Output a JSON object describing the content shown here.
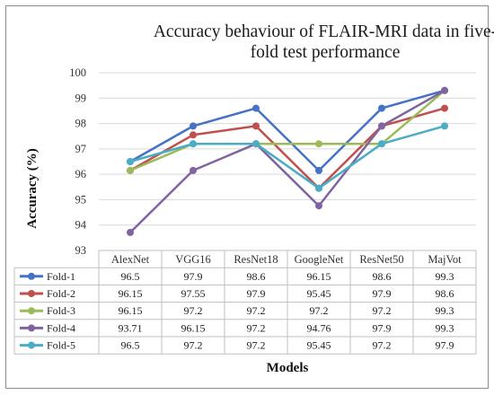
{
  "chart_data": {
    "type": "line",
    "title": "Accuracy behaviour of FLAIR-MRI data in five-fold test performance",
    "title_lines": [
      "Accuracy  behaviour  of  FLAIR-MRI  data  in  five-",
      "fold test performance"
    ],
    "xlabel": "Models",
    "ylabel": "Accuracy (%)",
    "ylim": [
      93,
      100
    ],
    "yticks": [
      "93",
      "94",
      "95",
      "96",
      "97",
      "98",
      "99",
      "100"
    ],
    "grid": true,
    "legend": "data-table",
    "categories": [
      "AlexNet",
      "VGG16",
      "ResNet18",
      "GoogleNet",
      "ResNet50",
      "MajVot"
    ],
    "series": [
      {
        "name": "Fold-1",
        "color": "#4472C4",
        "values": [
          96.5,
          97.9,
          98.6,
          96.15,
          98.6,
          99.3
        ],
        "labels": [
          "96.5",
          "97.9",
          "98.6",
          "96.15",
          "98.6",
          "99.3"
        ]
      },
      {
        "name": "Fold-2",
        "color": "#C0504D",
        "values": [
          96.15,
          97.55,
          97.9,
          95.45,
          97.9,
          98.6
        ],
        "labels": [
          "96.15",
          "97.55",
          "97.9",
          "95.45",
          "97.9",
          "98.6"
        ]
      },
      {
        "name": "Fold-3",
        "color": "#9BBB59",
        "values": [
          96.15,
          97.2,
          97.2,
          97.2,
          97.2,
          99.3
        ],
        "labels": [
          "96.15",
          "97.2",
          "97.2",
          "97.2",
          "97.2",
          "99.3"
        ]
      },
      {
        "name": "Fold-4",
        "color": "#8064A2",
        "values": [
          93.71,
          96.15,
          97.2,
          94.76,
          97.9,
          99.3
        ],
        "labels": [
          "93.71",
          "96.15",
          "97.2",
          "94.76",
          "97.9",
          "99.3"
        ]
      },
      {
        "name": "Fold-5",
        "color": "#4BACC6",
        "values": [
          96.5,
          97.2,
          97.2,
          95.45,
          97.2,
          97.9
        ],
        "labels": [
          "96.5",
          "97.2",
          "97.2",
          "95.45",
          "97.2",
          "97.9"
        ]
      }
    ]
  }
}
